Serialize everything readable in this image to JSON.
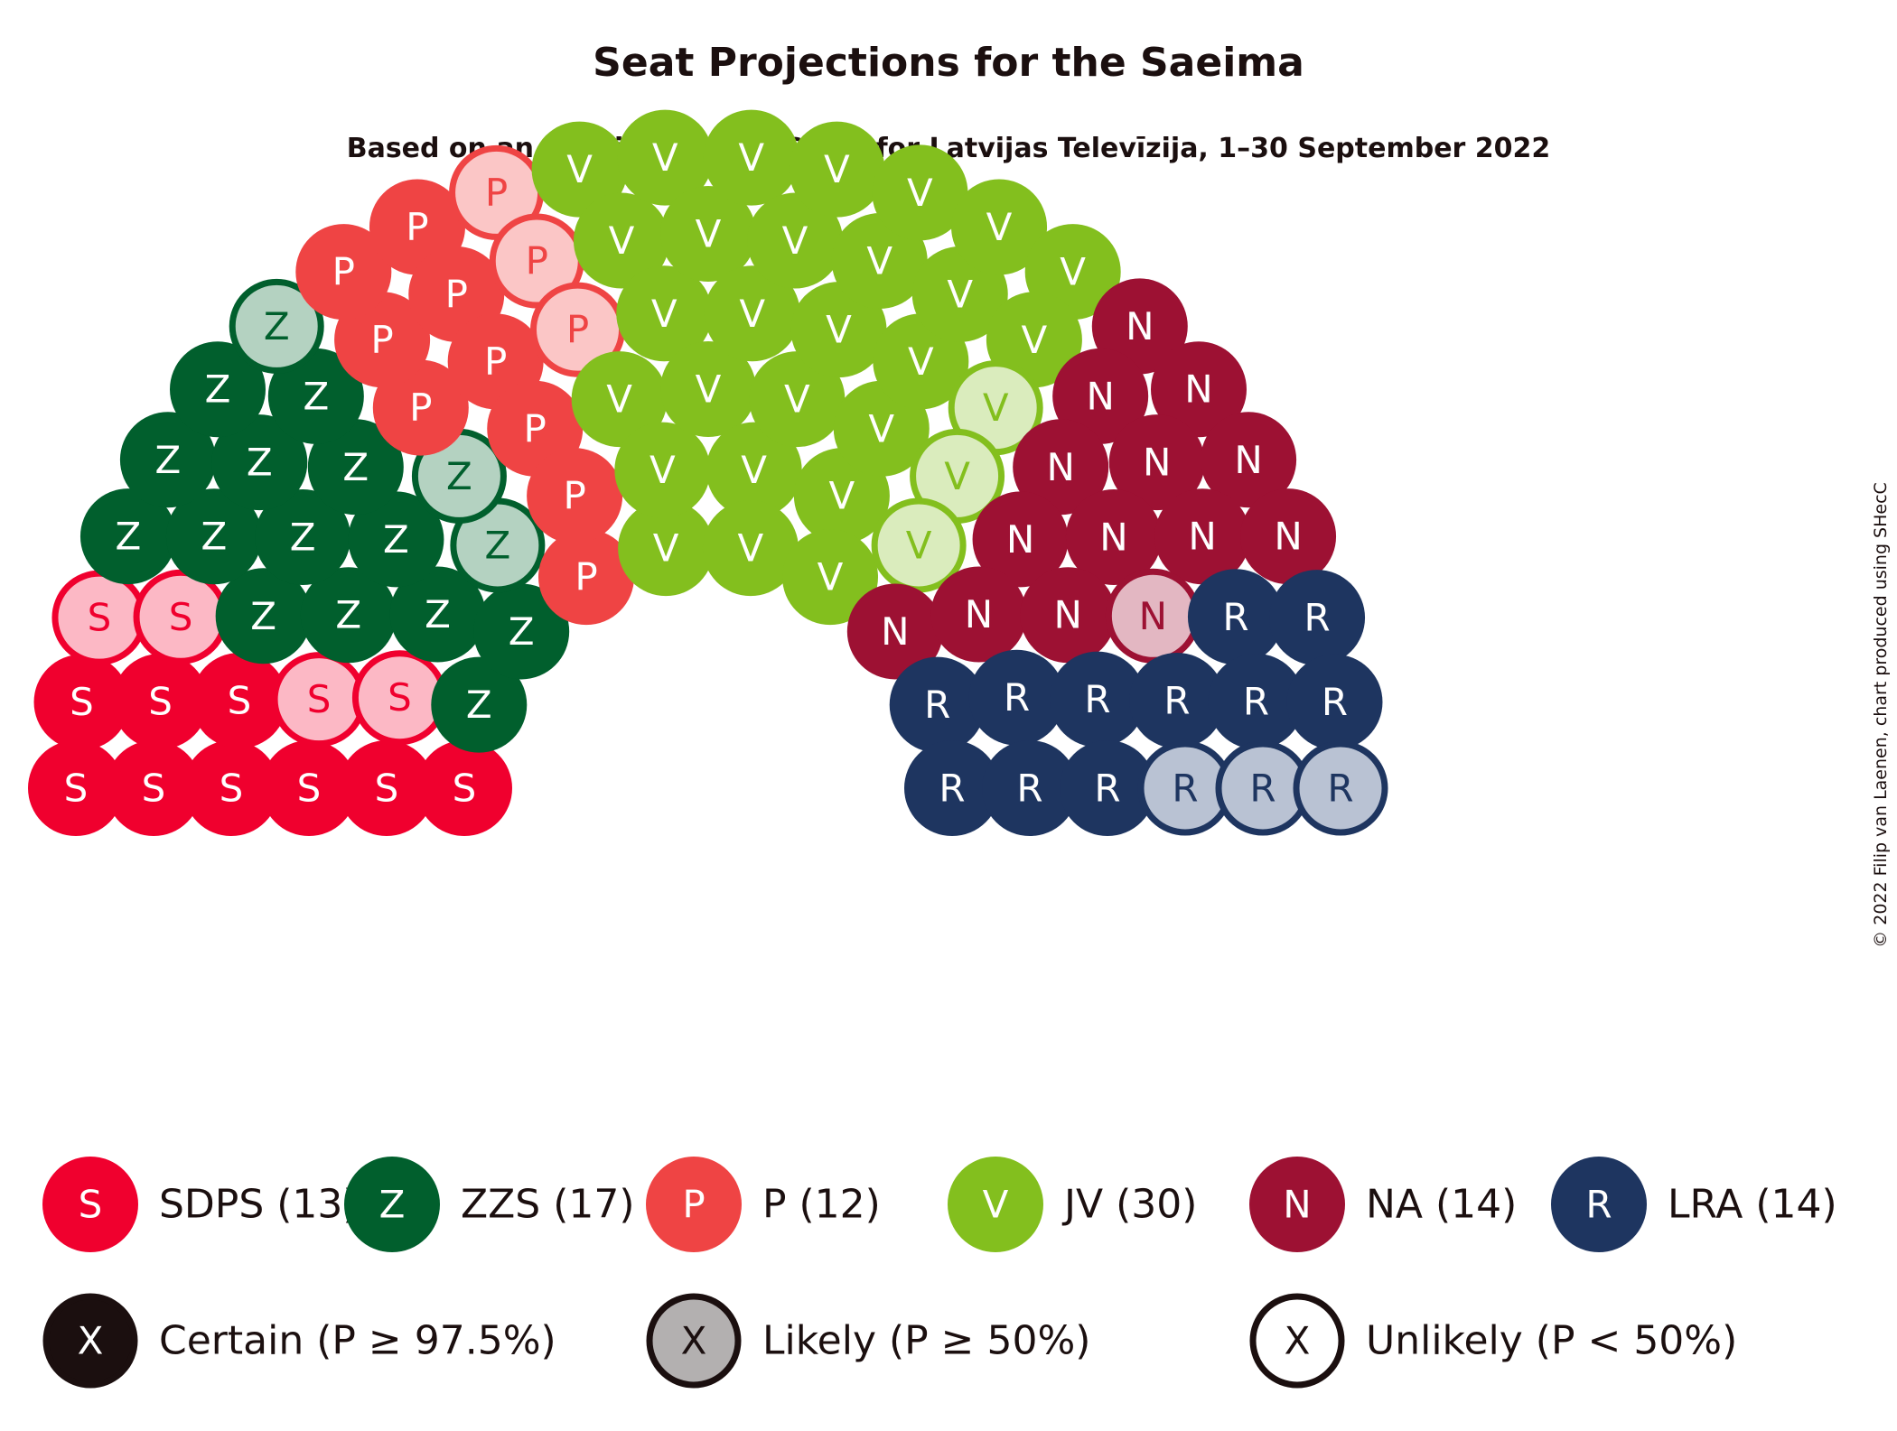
{
  "title": "Seat Projections for the Saeima",
  "subtitle": "Based on an Opinion Poll by SKDS for Latvijas Televīzija, 1–30 September 2022",
  "copyright": "© 2022 Filip van Laenen, chart produced using SHecC",
  "chart_data": {
    "type": "parliament",
    "total_seats": 100,
    "parties": [
      {
        "code": "S",
        "name": "SDPS",
        "seats": 13,
        "certain": 9,
        "likely": 4,
        "unlikely": 0,
        "color": "#f0002e",
        "light": "#fcb8c5",
        "label": "SDPS (13)"
      },
      {
        "code": "Z",
        "name": "ZZS",
        "seats": 17,
        "certain": 14,
        "likely": 3,
        "unlikely": 0,
        "color": "#015f2d",
        "light": "#b4d2c1",
        "label": "ZZS (17)"
      },
      {
        "code": "P",
        "name": "P",
        "seats": 12,
        "certain": 9,
        "likely": 3,
        "unlikely": 0,
        "color": "#ef4444",
        "light": "#fbc6c6",
        "label": "P (12)"
      },
      {
        "code": "V",
        "name": "JV",
        "seats": 30,
        "certain": 27,
        "likely": 3,
        "unlikely": 0,
        "color": "#83bf1e",
        "light": "#daecbd",
        "label": "JV (30)"
      },
      {
        "code": "N",
        "name": "NA",
        "seats": 14,
        "certain": 13,
        "likely": 1,
        "unlikely": 0,
        "color": "#9d1133",
        "light": "#e3b7c2",
        "label": "NA (14)"
      },
      {
        "code": "R",
        "name": "LRA",
        "seats": 14,
        "certain": 11,
        "likely": 3,
        "unlikely": 0,
        "color": "#1e3560",
        "light": "#b9c2d3",
        "label": "LRA (14)"
      }
    ],
    "certainty_legend": [
      {
        "letter": "X",
        "label": "Certain (P ≥ 97.5%)",
        "fill": "#1b0f0f",
        "stroke": "#1b0f0f",
        "text_color": "#ffffff"
      },
      {
        "letter": "X",
        "label": "Likely (P ≥ 50%)",
        "fill": "#b3b0b0",
        "stroke": "#1b0f0f",
        "text_color": "#1b0f0f"
      },
      {
        "letter": "X",
        "label": "Unlikely (P < 50%)",
        "fill": "#ffffff",
        "stroke": "#1b0f0f",
        "text_color": "#1b0f0f"
      }
    ]
  }
}
